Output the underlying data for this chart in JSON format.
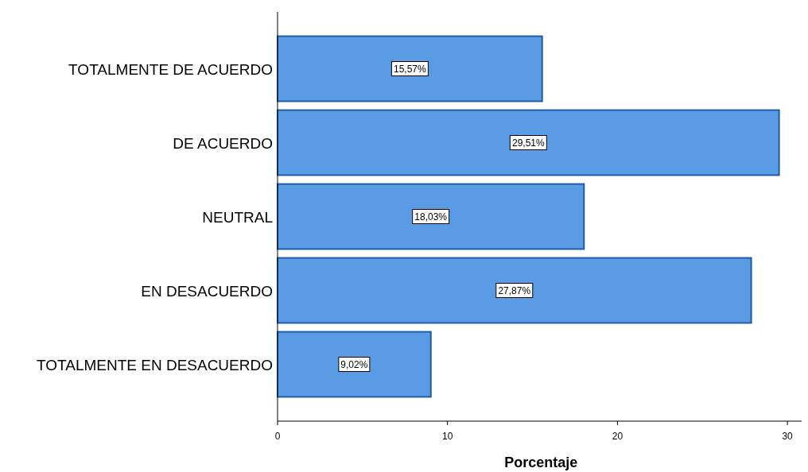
{
  "chart_data": {
    "type": "bar",
    "orientation": "horizontal",
    "xlabel": "Porcentaje",
    "categories": [
      "TOTALMENTE DE ACUERDO",
      "DE ACUERDO",
      "NEUTRAL",
      "EN DESACUERDO",
      "TOTALMENTE EN DESACUERDO"
    ],
    "values": [
      15.57,
      29.51,
      18.03,
      27.87,
      9.02
    ],
    "value_labels": [
      "15,57%",
      "29,51%",
      "18,03%",
      "27,87%",
      "9,02%"
    ],
    "color": "#5a9be6",
    "xlim": [
      0,
      31
    ],
    "xticks": [
      0,
      10,
      20,
      30
    ],
    "grid": false
  }
}
